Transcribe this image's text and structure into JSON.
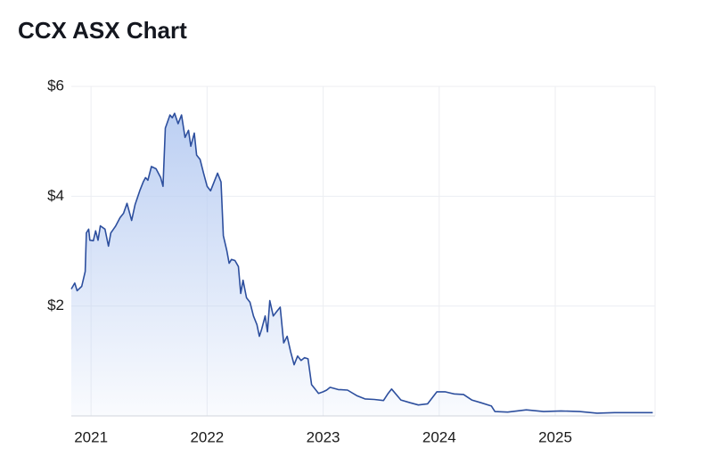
{
  "chart_data": {
    "type": "area",
    "title": "CCX ASX Chart",
    "color": "#2d4f9e",
    "fill": "#b9cdf2",
    "grid": true,
    "xlim": [
      2020.83,
      2025.86
    ],
    "ylim": [
      0,
      6
    ],
    "xticks": [
      2021,
      2022,
      2023,
      2024,
      2025
    ],
    "yticks": [
      {
        "value": 2,
        "label": "$2"
      },
      {
        "value": 4,
        "label": "$4"
      },
      {
        "value": 6,
        "label": "$6"
      }
    ],
    "x": [
      2020.83,
      2020.86,
      2020.88,
      2020.92,
      2020.95,
      2020.96,
      2020.98,
      2020.99,
      2021.02,
      2021.04,
      2021.06,
      2021.08,
      2021.12,
      2021.15,
      2021.17,
      2021.21,
      2021.25,
      2021.28,
      2021.31,
      2021.35,
      2021.38,
      2021.42,
      2021.45,
      2021.47,
      2021.49,
      2021.52,
      2021.56,
      2021.6,
      2021.62,
      2021.64,
      2021.68,
      2021.7,
      2021.72,
      2021.75,
      2021.78,
      2021.81,
      2021.84,
      2021.86,
      2021.89,
      2021.91,
      2021.94,
      2021.97,
      2022.0,
      2022.03,
      2022.06,
      2022.09,
      2022.12,
      2022.14,
      2022.17,
      2022.19,
      2022.21,
      2022.24,
      2022.27,
      2022.29,
      2022.31,
      2022.34,
      2022.37,
      2022.4,
      2022.43,
      2022.45,
      2022.47,
      2022.5,
      2022.52,
      2022.54,
      2022.57,
      2022.6,
      2022.63,
      2022.66,
      2022.69,
      2022.72,
      2022.75,
      2022.78,
      2022.81,
      2022.84,
      2022.87,
      2022.9,
      2022.93,
      2022.96,
      2023.0,
      2023.03,
      2023.06,
      2023.13,
      2023.21,
      2023.29,
      2023.36,
      2023.44,
      2023.52,
      2023.56,
      2023.59,
      2023.67,
      2023.75,
      2023.82,
      2023.9,
      2023.98,
      2024.05,
      2024.13,
      2024.21,
      2024.28,
      2024.36,
      2024.45,
      2024.48,
      2024.59,
      2024.75,
      2024.9,
      2025.05,
      2025.21,
      2025.36,
      2025.51,
      2025.67,
      2025.84
    ],
    "values": [
      2.31,
      2.42,
      2.28,
      2.36,
      2.63,
      3.33,
      3.4,
      3.2,
      3.19,
      3.37,
      3.2,
      3.46,
      3.4,
      3.09,
      3.33,
      3.45,
      3.61,
      3.69,
      3.87,
      3.56,
      3.85,
      4.1,
      4.26,
      4.34,
      4.29,
      4.54,
      4.5,
      4.34,
      4.18,
      5.24,
      5.48,
      5.43,
      5.51,
      5.32,
      5.48,
      5.07,
      5.2,
      4.91,
      5.15,
      4.75,
      4.67,
      4.42,
      4.18,
      4.1,
      4.26,
      4.42,
      4.26,
      3.28,
      3.01,
      2.78,
      2.85,
      2.83,
      2.72,
      2.23,
      2.47,
      2.15,
      2.07,
      1.82,
      1.66,
      1.45,
      1.58,
      1.82,
      1.53,
      2.1,
      1.82,
      1.9,
      1.98,
      1.33,
      1.45,
      1.17,
      0.93,
      1.09,
      1.01,
      1.06,
      1.04,
      0.57,
      0.49,
      0.41,
      0.44,
      0.47,
      0.52,
      0.48,
      0.47,
      0.37,
      0.31,
      0.3,
      0.28,
      0.41,
      0.49,
      0.29,
      0.24,
      0.2,
      0.22,
      0.44,
      0.44,
      0.4,
      0.39,
      0.29,
      0.24,
      0.18,
      0.08,
      0.07,
      0.11,
      0.08,
      0.09,
      0.08,
      0.05,
      0.06,
      0.06,
      0.06
    ]
  }
}
